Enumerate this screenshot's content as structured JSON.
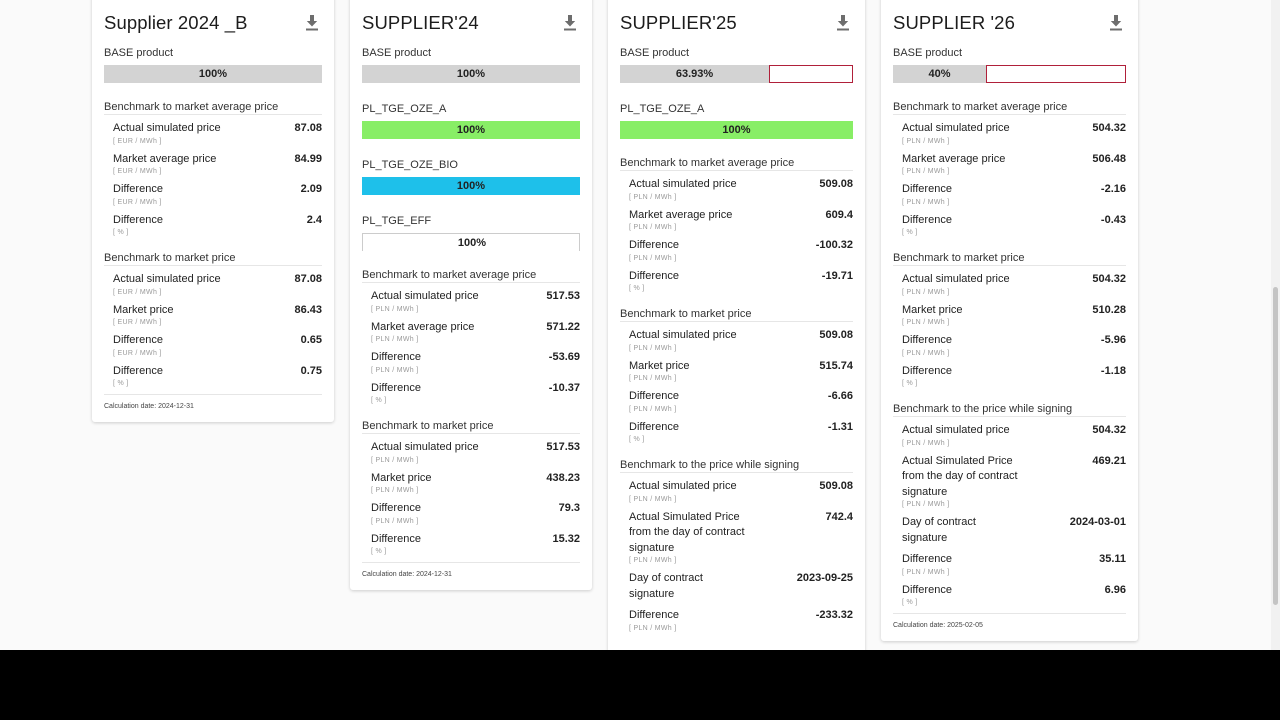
{
  "colors": {
    "grey_bar": "#d3d3d3",
    "green_bar": "#88ee66",
    "blue_bar": "#1ec0ea",
    "outline_red": "#b0203a"
  },
  "cards": [
    {
      "title": "Supplier 2024 _B",
      "download_icon": "download-icon",
      "products": [
        {
          "label": "BASE product",
          "percent_text": "100%",
          "fill_fraction": 1.0,
          "color": "#d3d3d3",
          "style": "filled"
        }
      ],
      "sections": [
        {
          "title": "Benchmark to market average price",
          "rows": [
            {
              "label": "Actual simulated price",
              "unit": "[ EUR / MWh ]",
              "value": "87.08"
            },
            {
              "label": "Market average price",
              "unit": "[ EUR / MWh ]",
              "value": "84.99"
            },
            {
              "label": "Difference",
              "unit": "[ EUR / MWh ]",
              "value": "2.09"
            },
            {
              "label": "Difference",
              "unit": "[ % ]",
              "value": "2.4"
            }
          ]
        },
        {
          "title": "Benchmark to market price",
          "rows": [
            {
              "label": "Actual simulated price",
              "unit": "[ EUR / MWh ]",
              "value": "87.08"
            },
            {
              "label": "Market price",
              "unit": "[ EUR / MWh ]",
              "value": "86.43"
            },
            {
              "label": "Difference",
              "unit": "[ EUR / MWh ]",
              "value": "0.65"
            },
            {
              "label": "Difference",
              "unit": "[ % ]",
              "value": "0.75"
            }
          ]
        }
      ],
      "calc_date": "Calculation date: 2024-12-31"
    },
    {
      "title": "SUPPLIER'24",
      "download_icon": "download-icon",
      "products": [
        {
          "label": "BASE product",
          "percent_text": "100%",
          "fill_fraction": 1.0,
          "color": "#d3d3d3",
          "style": "filled"
        },
        {
          "label": "PL_TGE_OZE_A",
          "percent_text": "100%",
          "fill_fraction": 1.0,
          "color": "#88ee66",
          "style": "filled"
        },
        {
          "label": "PL_TGE_OZE_BIO",
          "percent_text": "100%",
          "fill_fraction": 1.0,
          "color": "#1ec0ea",
          "style": "filled"
        },
        {
          "label": "PL_TGE_EFF",
          "percent_text": "100%",
          "fill_fraction": 1.0,
          "color": "#ffffff",
          "style": "outlined"
        }
      ],
      "sections": [
        {
          "title": "Benchmark to market average price",
          "rows": [
            {
              "label": "Actual simulated price",
              "unit": "[ PLN / MWh ]",
              "value": "517.53"
            },
            {
              "label": "Market average price",
              "unit": "[ PLN / MWh ]",
              "value": "571.22"
            },
            {
              "label": "Difference",
              "unit": "[ PLN / MWh ]",
              "value": "-53.69"
            },
            {
              "label": "Difference",
              "unit": "[ % ]",
              "value": "-10.37"
            }
          ]
        },
        {
          "title": "Benchmark to market price",
          "rows": [
            {
              "label": "Actual simulated price",
              "unit": "[ PLN / MWh ]",
              "value": "517.53"
            },
            {
              "label": "Market price",
              "unit": "[ PLN / MWh ]",
              "value": "438.23"
            },
            {
              "label": "Difference",
              "unit": "[ PLN / MWh ]",
              "value": "79.3"
            },
            {
              "label": "Difference",
              "unit": "[ % ]",
              "value": "15.32"
            }
          ]
        }
      ],
      "calc_date": "Calculation date: 2024-12-31"
    },
    {
      "title": "SUPPLIER'25",
      "download_icon": "download-icon",
      "products": [
        {
          "label": "BASE product",
          "percent_text": "63.93%",
          "fill_fraction": 0.6393,
          "color": "#d3d3d3",
          "style": "partial"
        },
        {
          "label": "PL_TGE_OZE_A",
          "percent_text": "100%",
          "fill_fraction": 1.0,
          "color": "#88ee66",
          "style": "filled"
        }
      ],
      "sections": [
        {
          "title": "Benchmark to market average price",
          "rows": [
            {
              "label": "Actual simulated price",
              "unit": "[ PLN / MWh ]",
              "value": "509.08"
            },
            {
              "label": "Market average price",
              "unit": "[ PLN / MWh ]",
              "value": "609.4"
            },
            {
              "label": "Difference",
              "unit": "[ PLN / MWh ]",
              "value": "-100.32"
            },
            {
              "label": "Difference",
              "unit": "[ % ]",
              "value": "-19.71"
            }
          ]
        },
        {
          "title": "Benchmark to market price",
          "rows": [
            {
              "label": "Actual simulated price",
              "unit": "[ PLN / MWh ]",
              "value": "509.08"
            },
            {
              "label": "Market price",
              "unit": "[ PLN / MWh ]",
              "value": "515.74"
            },
            {
              "label": "Difference",
              "unit": "[ PLN / MWh ]",
              "value": "-6.66"
            },
            {
              "label": "Difference",
              "unit": "[ % ]",
              "value": "-1.31"
            }
          ]
        },
        {
          "title": "Benchmark to the price while signing",
          "rows": [
            {
              "label": "Actual simulated price",
              "unit": "[ PLN / MWh ]",
              "value": "509.08"
            },
            {
              "label": "Actual Simulated Price from the day of contract signature",
              "unit": "[ PLN / MWh ]",
              "value": "742.4"
            },
            {
              "label": "Day of contract signature",
              "unit": "",
              "value": "2023-09-25"
            },
            {
              "label": "Difference",
              "unit": "[ PLN / MWh ]",
              "value": "-233.32"
            }
          ]
        }
      ],
      "calc_date": ""
    },
    {
      "title": "SUPPLIER '26",
      "download_icon": "download-icon",
      "products": [
        {
          "label": "BASE product",
          "percent_text": "40%",
          "fill_fraction": 0.4,
          "color": "#d3d3d3",
          "style": "partial"
        }
      ],
      "sections": [
        {
          "title": "Benchmark to market average price",
          "rows": [
            {
              "label": "Actual simulated price",
              "unit": "[ PLN / MWh ]",
              "value": "504.32"
            },
            {
              "label": "Market average price",
              "unit": "[ PLN / MWh ]",
              "value": "506.48"
            },
            {
              "label": "Difference",
              "unit": "[ PLN / MWh ]",
              "value": "-2.16"
            },
            {
              "label": "Difference",
              "unit": "[ % ]",
              "value": "-0.43"
            }
          ]
        },
        {
          "title": "Benchmark to market price",
          "rows": [
            {
              "label": "Actual simulated price",
              "unit": "[ PLN / MWh ]",
              "value": "504.32"
            },
            {
              "label": "Market price",
              "unit": "[ PLN / MWh ]",
              "value": "510.28"
            },
            {
              "label": "Difference",
              "unit": "[ PLN / MWh ]",
              "value": "-5.96"
            },
            {
              "label": "Difference",
              "unit": "[ % ]",
              "value": "-1.18"
            }
          ]
        },
        {
          "title": "Benchmark to the price while signing",
          "rows": [
            {
              "label": "Actual simulated price",
              "unit": "[ PLN / MWh ]",
              "value": "504.32"
            },
            {
              "label": "Actual Simulated Price from the day of contract signature",
              "unit": "[ PLN / MWh ]",
              "value": "469.21"
            },
            {
              "label": "Day of contract signature",
              "unit": "",
              "value": "2024-03-01"
            },
            {
              "label": "Difference",
              "unit": "[ PLN / MWh ]",
              "value": "35.11"
            },
            {
              "label": "Difference",
              "unit": "[ % ]",
              "value": "6.96"
            }
          ]
        }
      ],
      "calc_date": "Calculation date: 2025-02-05"
    }
  ]
}
